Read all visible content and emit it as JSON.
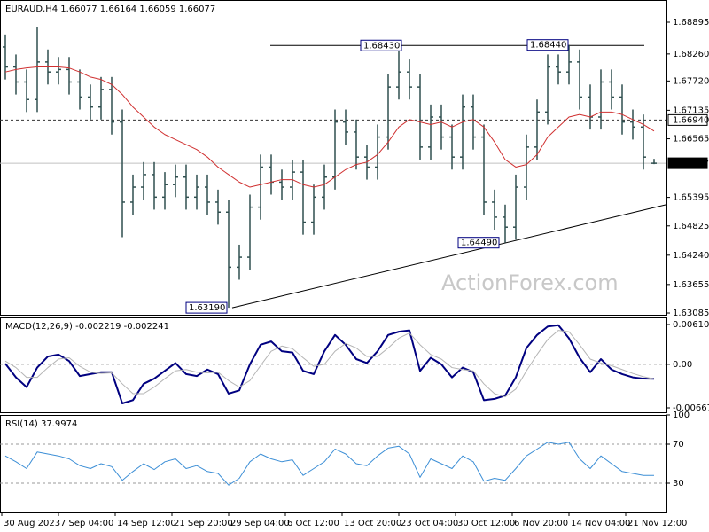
{
  "chart_data": [
    {
      "type": "candlestick",
      "title": "EURAUD,H4 1.66077 1.66164 1.66059 1.66077",
      "watermark": "ActionForex.com",
      "color": "#2f4f4f",
      "open": [
        1.684,
        1.68,
        1.677,
        1.6735,
        1.681,
        1.679,
        1.6795,
        1.677,
        1.674,
        1.672,
        1.6755,
        1.669,
        1.653,
        1.656,
        1.6585,
        1.654,
        1.6565,
        1.658,
        1.654,
        1.656,
        1.653,
        1.651,
        1.64,
        1.642,
        1.652,
        1.66,
        1.657,
        1.656,
        1.659,
        1.649,
        1.654,
        1.658,
        1.669,
        1.667,
        1.662,
        1.66,
        1.666,
        1.676,
        1.679,
        1.676,
        1.664,
        1.67,
        1.666,
        1.662,
        1.672,
        1.666,
        1.653,
        1.65,
        1.648,
        1.656,
        1.664,
        1.671,
        1.68,
        1.679,
        1.681,
        1.674,
        1.67,
        1.677,
        1.674,
        1.669,
        1.668,
        1.66077
      ],
      "high": [
        1.6865,
        1.6825,
        1.6795,
        1.688,
        1.6835,
        1.682,
        1.682,
        1.6795,
        1.6765,
        1.678,
        1.678,
        1.6715,
        1.6585,
        1.661,
        1.661,
        1.659,
        1.6605,
        1.6605,
        1.6585,
        1.6585,
        1.6555,
        1.6535,
        1.6445,
        1.6545,
        1.6625,
        1.6625,
        1.6595,
        1.6615,
        1.6615,
        1.6565,
        1.6605,
        1.6715,
        1.6715,
        1.6695,
        1.6645,
        1.6685,
        1.6785,
        1.6843,
        1.6815,
        1.6785,
        1.6725,
        1.6725,
        1.6685,
        1.6745,
        1.6745,
        1.6685,
        1.6555,
        1.6525,
        1.6585,
        1.6665,
        1.6735,
        1.6825,
        1.6825,
        1.6844,
        1.6835,
        1.6765,
        1.6795,
        1.6795,
        1.6765,
        1.6715,
        1.6705,
        1.66164
      ],
      "low": [
        1.6775,
        1.6745,
        1.671,
        1.671,
        1.6765,
        1.6765,
        1.6745,
        1.6715,
        1.6695,
        1.6695,
        1.6665,
        1.646,
        1.6505,
        1.6535,
        1.6515,
        1.6515,
        1.654,
        1.6515,
        1.6515,
        1.6505,
        1.6485,
        1.6319,
        1.6375,
        1.6395,
        1.6495,
        1.6545,
        1.6535,
        1.6535,
        1.6465,
        1.6465,
        1.6515,
        1.6555,
        1.6645,
        1.6595,
        1.6575,
        1.6575,
        1.6635,
        1.6735,
        1.6735,
        1.6615,
        1.6615,
        1.6635,
        1.6595,
        1.6595,
        1.6635,
        1.6505,
        1.6475,
        1.6449,
        1.6455,
        1.6535,
        1.6615,
        1.6685,
        1.6765,
        1.6765,
        1.6715,
        1.6675,
        1.6675,
        1.6715,
        1.6665,
        1.6655,
        1.6595,
        1.66059
      ],
      "close": [
        1.68,
        1.677,
        1.6735,
        1.681,
        1.679,
        1.6795,
        1.677,
        1.674,
        1.672,
        1.6755,
        1.669,
        1.653,
        1.656,
        1.6585,
        1.654,
        1.6565,
        1.658,
        1.654,
        1.656,
        1.653,
        1.651,
        1.64,
        1.642,
        1.652,
        1.66,
        1.657,
        1.656,
        1.659,
        1.649,
        1.654,
        1.658,
        1.669,
        1.667,
        1.662,
        1.66,
        1.666,
        1.676,
        1.679,
        1.676,
        1.664,
        1.67,
        1.666,
        1.662,
        1.672,
        1.666,
        1.653,
        1.65,
        1.648,
        1.656,
        1.664,
        1.671,
        1.68,
        1.679,
        1.681,
        1.674,
        1.67,
        1.677,
        1.674,
        1.669,
        1.668,
        1.662,
        1.66077
      ],
      "overlay": {
        "color": "#d03030",
        "values": [
          1.679,
          1.6795,
          1.6798,
          1.68,
          1.68,
          1.68,
          1.6798,
          1.679,
          1.678,
          1.6775,
          1.6765,
          1.6745,
          1.672,
          1.67,
          1.668,
          1.6665,
          1.6655,
          1.6645,
          1.6635,
          1.662,
          1.66,
          1.6585,
          1.657,
          1.656,
          1.6565,
          1.657,
          1.6575,
          1.6575,
          1.6565,
          1.656,
          1.6565,
          1.658,
          1.6595,
          1.6605,
          1.661,
          1.6625,
          1.665,
          1.668,
          1.6695,
          1.669,
          1.6685,
          1.669,
          1.668,
          1.669,
          1.6695,
          1.668,
          1.665,
          1.6615,
          1.66,
          1.6605,
          1.6625,
          1.666,
          1.668,
          1.67,
          1.6705,
          1.67,
          1.671,
          1.671,
          1.6705,
          1.6695,
          1.6685,
          1.6672
        ]
      },
      "ylim": [
        1.6305,
        1.69338
      ],
      "yticks": [
        {
          "value": 1.68895,
          "label": "1.68895"
        },
        {
          "value": 1.6826,
          "label": "1.68260"
        },
        {
          "value": 1.6772,
          "label": "1.67720"
        },
        {
          "value": 1.67135,
          "label": "1.67135"
        },
        {
          "value": 1.66565,
          "label": "1.66565"
        },
        {
          "value": 1.65395,
          "label": "1.65395"
        },
        {
          "value": 1.64825,
          "label": "1.64825"
        },
        {
          "value": 1.6424,
          "label": "1.64240"
        },
        {
          "value": 1.63655,
          "label": "1.63655"
        },
        {
          "value": 1.63085,
          "label": "1.63085"
        }
      ],
      "levels": [
        {
          "value": 1.6694,
          "label": "1.66940",
          "style": "dashed"
        },
        {
          "value": 1.66077,
          "label": "1.66077",
          "style": "solid"
        }
      ],
      "annotations": [
        {
          "value": 1.6843,
          "label": "1.68430"
        },
        {
          "value": 1.6844,
          "label": "1.68440"
        },
        {
          "value": 1.6449,
          "label": "1.64490"
        },
        {
          "value": 1.6319,
          "label": "1.63190"
        }
      ],
      "trendlines": [
        {
          "start": 1.6843,
          "end": 1.6843
        },
        {
          "start": 1.6319,
          "end": 1.6525
        }
      ],
      "time_labels": [
        "30 Aug 2023",
        "7 Sep 04:00",
        "14 Sep 12:00",
        "21 Sep 20:00",
        "29 Sep 04:00",
        "6 Oct 12:00",
        "13 Oct 20:00",
        "23 Oct 04:00",
        "30 Oct 12:00",
        "6 Nov 20:00",
        "14 Nov 04:00",
        "21 Nov 12:00"
      ]
    },
    {
      "type": "line",
      "title": "MACD(12,26,9) -0.002219 -0.002241",
      "series": [
        {
          "color": "#000080",
          "values": [
            0.0001,
            -0.002,
            -0.0035,
            -0.0005,
            0.0012,
            0.0015,
            0.0005,
            -0.0018,
            -0.0015,
            -0.0012,
            -0.0012,
            -0.006,
            -0.0055,
            -0.003,
            -0.0022,
            -0.001,
            0.0002,
            -0.0015,
            -0.0018,
            -0.0008,
            -0.0015,
            -0.0045,
            -0.004,
            0.0,
            0.003,
            0.0035,
            0.002,
            0.0018,
            -0.001,
            -0.0015,
            0.002,
            0.0045,
            0.003,
            0.0008,
            0.0002,
            0.002,
            0.0045,
            0.005,
            0.0052,
            -0.001,
            0.001,
            0.0,
            -0.002,
            -0.0005,
            -0.0012,
            -0.0055,
            -0.0053,
            -0.0048,
            -0.002,
            0.0025,
            0.0045,
            0.0058,
            0.006,
            0.004,
            0.001,
            -0.0012,
            0.0008,
            -0.0008,
            -0.0015,
            -0.002,
            -0.0022,
            -0.002219
          ]
        },
        {
          "color": "#b4b4b4",
          "values": [
            0.0005,
            -0.0005,
            -0.002,
            -0.002,
            -0.0005,
            0.0008,
            0.001,
            -0.0003,
            -0.0012,
            -0.0014,
            -0.0013,
            -0.003,
            -0.0045,
            -0.0045,
            -0.0035,
            -0.0022,
            -0.001,
            -0.0008,
            -0.0012,
            -0.0013,
            -0.0012,
            -0.0025,
            -0.0035,
            -0.0025,
            -0.0002,
            0.002,
            0.0028,
            0.0024,
            0.001,
            -0.0003,
            0.0,
            0.002,
            0.0032,
            0.0025,
            0.0012,
            0.0012,
            0.0025,
            0.004,
            0.0048,
            0.003,
            0.0015,
            0.0008,
            -0.0005,
            -0.0008,
            -0.001,
            -0.003,
            -0.0045,
            -0.005,
            -0.0038,
            -0.001,
            0.0015,
            0.0038,
            0.0052,
            0.005,
            0.003,
            0.0008,
            0.0002,
            -0.0002,
            -0.0008,
            -0.0014,
            -0.0019,
            -0.002241
          ]
        }
      ],
      "ylim": [
        -0.007359,
        0.007191
      ],
      "yticks": [
        0.006103,
        {
          "value": 0,
          "label": "0.00"
        },
        -0.006679
      ],
      "reference_lines": [
        0
      ]
    },
    {
      "type": "line",
      "title": "RSI(14) 37.9974",
      "series": [
        {
          "color": "#3d8fd6",
          "values": [
            58,
            52,
            45,
            62,
            60,
            58,
            55,
            48,
            45,
            50,
            47,
            33,
            42,
            50,
            44,
            52,
            55,
            45,
            48,
            42,
            40,
            28,
            35,
            52,
            60,
            55,
            52,
            54,
            38,
            45,
            52,
            65,
            60,
            50,
            48,
            58,
            66,
            68,
            60,
            36,
            55,
            50,
            45,
            58,
            52,
            32,
            35,
            33,
            45,
            58,
            65,
            72,
            70,
            72,
            55,
            45,
            58,
            50,
            42,
            40,
            38,
            37.9974
          ]
        }
      ],
      "ylim": [
        0,
        100
      ],
      "yticks": [
        100,
        70,
        30
      ],
      "reference_lines": [
        70,
        30
      ]
    }
  ]
}
